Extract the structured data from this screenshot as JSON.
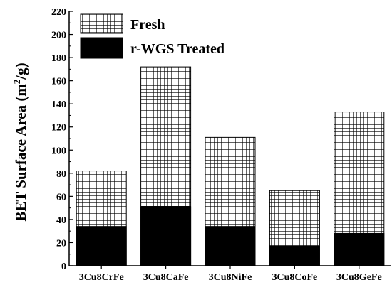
{
  "chart_data": {
    "type": "bar",
    "stacked": "overlay",
    "categories": [
      "3Cu8CrFe",
      "3Cu8CaFe",
      "3Cu8NiFe",
      "3Cu8CoFe",
      "3Cu8GeFe"
    ],
    "series": [
      {
        "name": "Fresh",
        "values": [
          82,
          172,
          111,
          65,
          133
        ],
        "fill": "grid-hatch",
        "color": "#000000"
      },
      {
        "name": "r-WGS Treated",
        "values": [
          34,
          51,
          34,
          17,
          28
        ],
        "fill": "solid",
        "color": "#000000"
      }
    ],
    "ylabel": "BET Surface Area (m2/g)",
    "ylabel_parts": {
      "base": "BET Surface Area (m",
      "sup": "2",
      "tail": "/g)"
    },
    "ylim": [
      0,
      220
    ],
    "yticks": [
      0,
      20,
      40,
      60,
      80,
      100,
      120,
      140,
      160,
      180,
      200,
      220
    ],
    "legend_position": "top-left",
    "grid": false
  }
}
